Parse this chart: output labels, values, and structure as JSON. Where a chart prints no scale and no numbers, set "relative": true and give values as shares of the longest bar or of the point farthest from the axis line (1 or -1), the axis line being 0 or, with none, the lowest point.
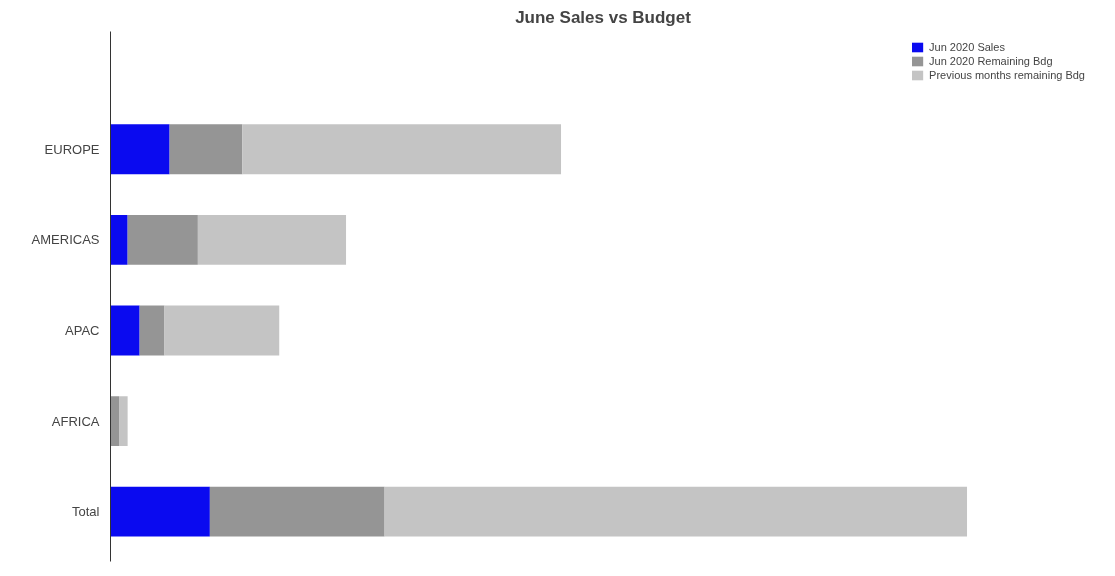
{
  "chart_data": {
    "type": "bar",
    "orientation": "horizontal",
    "stacked": true,
    "relative": true,
    "title": "June Sales vs Budget",
    "categories": [
      "EUROPE",
      "AMERICAS",
      "APAC",
      "AFRICA",
      "Total"
    ],
    "series": [
      {
        "name": "Jun 2020 Sales",
        "color": "#0a0af0",
        "values": [
          0.069,
          0.02,
          0.034,
          0,
          0.116
        ]
      },
      {
        "name": "Jun 2020 Remaining Bdg",
        "color": "#959595",
        "values": [
          0.085,
          0.082,
          0.029,
          0.01,
          0.204
        ]
      },
      {
        "name": "Previous months remaining Bdg",
        "color": "#c4c4c4",
        "values": [
          0.372,
          0.173,
          0.134,
          0.01,
          0.68
        ]
      }
    ],
    "legend": "top right",
    "grid": false
  }
}
